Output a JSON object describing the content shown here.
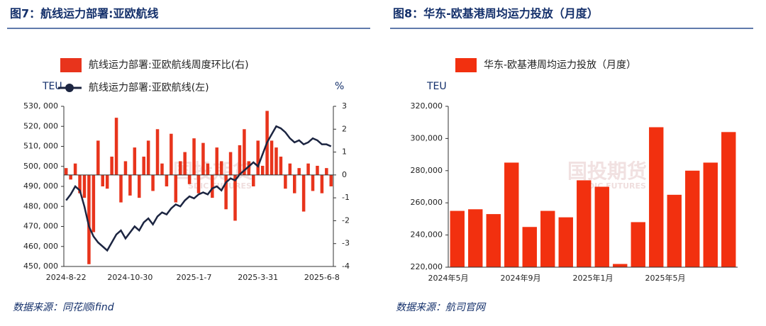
{
  "chart_data": [
    {
      "type": "combo",
      "title": "图7：航线运力部署:亚欧航线",
      "source": "数据来源：同花顺ifind",
      "ylabel": "TEU",
      "y2label": "%",
      "watermark": "国投期货",
      "watermark_sub": "SDIC FUTURES",
      "categories": [
        "2024-8-22",
        null,
        null,
        null,
        null,
        null,
        null,
        null,
        null,
        null,
        null,
        null,
        null,
        null,
        "2024-10-30",
        null,
        null,
        null,
        null,
        null,
        null,
        null,
        null,
        null,
        null,
        null,
        null,
        null,
        "2025-1-7",
        null,
        null,
        null,
        null,
        null,
        null,
        null,
        null,
        null,
        null,
        null,
        null,
        null,
        "2025-3-31",
        null,
        null,
        null,
        null,
        null,
        null,
        null,
        null,
        null,
        null,
        null,
        null,
        null,
        "2025-6-8",
        null,
        null
      ],
      "series": [
        {
          "name": "航线运力部署:亚欧航线周度环比(右)",
          "color": "#e8341c",
          "kind": "bar",
          "axis": "y2",
          "values": [
            0.3,
            -0.2,
            0.5,
            -0.8,
            -1,
            -3.9,
            -2.5,
            1.5,
            -0.5,
            -0.6,
            0.8,
            2.5,
            -1.2,
            0.6,
            -0.9,
            1.2,
            -1,
            0.8,
            1.5,
            -0.7,
            2,
            0.5,
            -0.5,
            1.8,
            -1.2,
            0.6,
            1,
            -0.4,
            1.6,
            -0.8,
            1.4,
            0.5,
            -1,
            1.2,
            0.6,
            -1.5,
            1,
            -2,
            1.3,
            2,
            0.6,
            -0.5,
            1.5,
            0.4,
            2.8,
            1.5,
            1.2,
            0.8,
            -0.6,
            0.5,
            -0.8,
            0.3,
            -1.6,
            0.5,
            -0.7,
            0.4,
            -0.8,
            0.3,
            -0.5
          ]
        },
        {
          "name": "航线运力部署:亚欧航线(左)",
          "color": "#1c2541",
          "kind": "line",
          "values": [
            483000,
            486000,
            490000,
            488000,
            480000,
            470000,
            465000,
            462000,
            460000,
            458000,
            462000,
            466000,
            468000,
            464000,
            467000,
            470000,
            468000,
            472000,
            474000,
            471000,
            475000,
            477000,
            476000,
            479000,
            481000,
            480000,
            483000,
            485000,
            484000,
            486000,
            487000,
            486000,
            489000,
            490000,
            488000,
            492000,
            494000,
            493000,
            496000,
            498000,
            500000,
            502000,
            500000,
            506000,
            512000,
            516000,
            520000,
            519000,
            517000,
            514000,
            512000,
            513000,
            511000,
            512000,
            514000,
            513000,
            511000,
            511000,
            510000
          ]
        }
      ],
      "ylim": [
        450000,
        530000
      ],
      "yticks": [
        {
          "value": 450000,
          "label": "450, 000"
        },
        {
          "value": 460000,
          "label": "460, 000"
        },
        {
          "value": 470000,
          "label": "470, 000"
        },
        {
          "value": 480000,
          "label": "480, 000"
        },
        {
          "value": 490000,
          "label": "490, 000"
        },
        {
          "value": 500000,
          "label": "500, 000"
        },
        {
          "value": 510000,
          "label": "510, 000"
        },
        {
          "value": 520000,
          "label": "520, 000"
        },
        {
          "value": 530000,
          "label": "530, 000"
        }
      ],
      "y2lim": [
        -4,
        3
      ],
      "y2ticks": [
        -4,
        -3,
        -2,
        -1,
        0,
        1,
        2,
        3
      ]
    },
    {
      "type": "bar",
      "title": "图8：华东-欧基港周均运力投放（月度）",
      "source": "数据来源：航司官网",
      "ylabel": "TEU",
      "watermark": "国投期货",
      "watermark_sub": "SDIC FUTURES",
      "categories": [
        "2024年5月",
        null,
        null,
        null,
        "2024年9月",
        null,
        null,
        null,
        "2025年1月",
        null,
        null,
        null,
        "2025年5月",
        null,
        null,
        null
      ],
      "series": [
        {
          "name": "华东-欧基港周均运力投放（月度）",
          "color": "#f2300f",
          "values": [
            255000,
            256000,
            253000,
            285000,
            245000,
            255000,
            251000,
            274000,
            270000,
            222000,
            248000,
            307000,
            265000,
            280000,
            285000,
            304000
          ]
        }
      ],
      "ylim": [
        220000,
        320000
      ],
      "yticks": [
        {
          "value": 220000,
          "label": "220,000"
        },
        {
          "value": 240000,
          "label": "240,000"
        },
        {
          "value": 260000,
          "label": "260,000"
        },
        {
          "value": 280000,
          "label": "280,000"
        },
        {
          "value": 300000,
          "label": "300,000"
        },
        {
          "value": 320000,
          "label": "320,000"
        }
      ]
    }
  ]
}
